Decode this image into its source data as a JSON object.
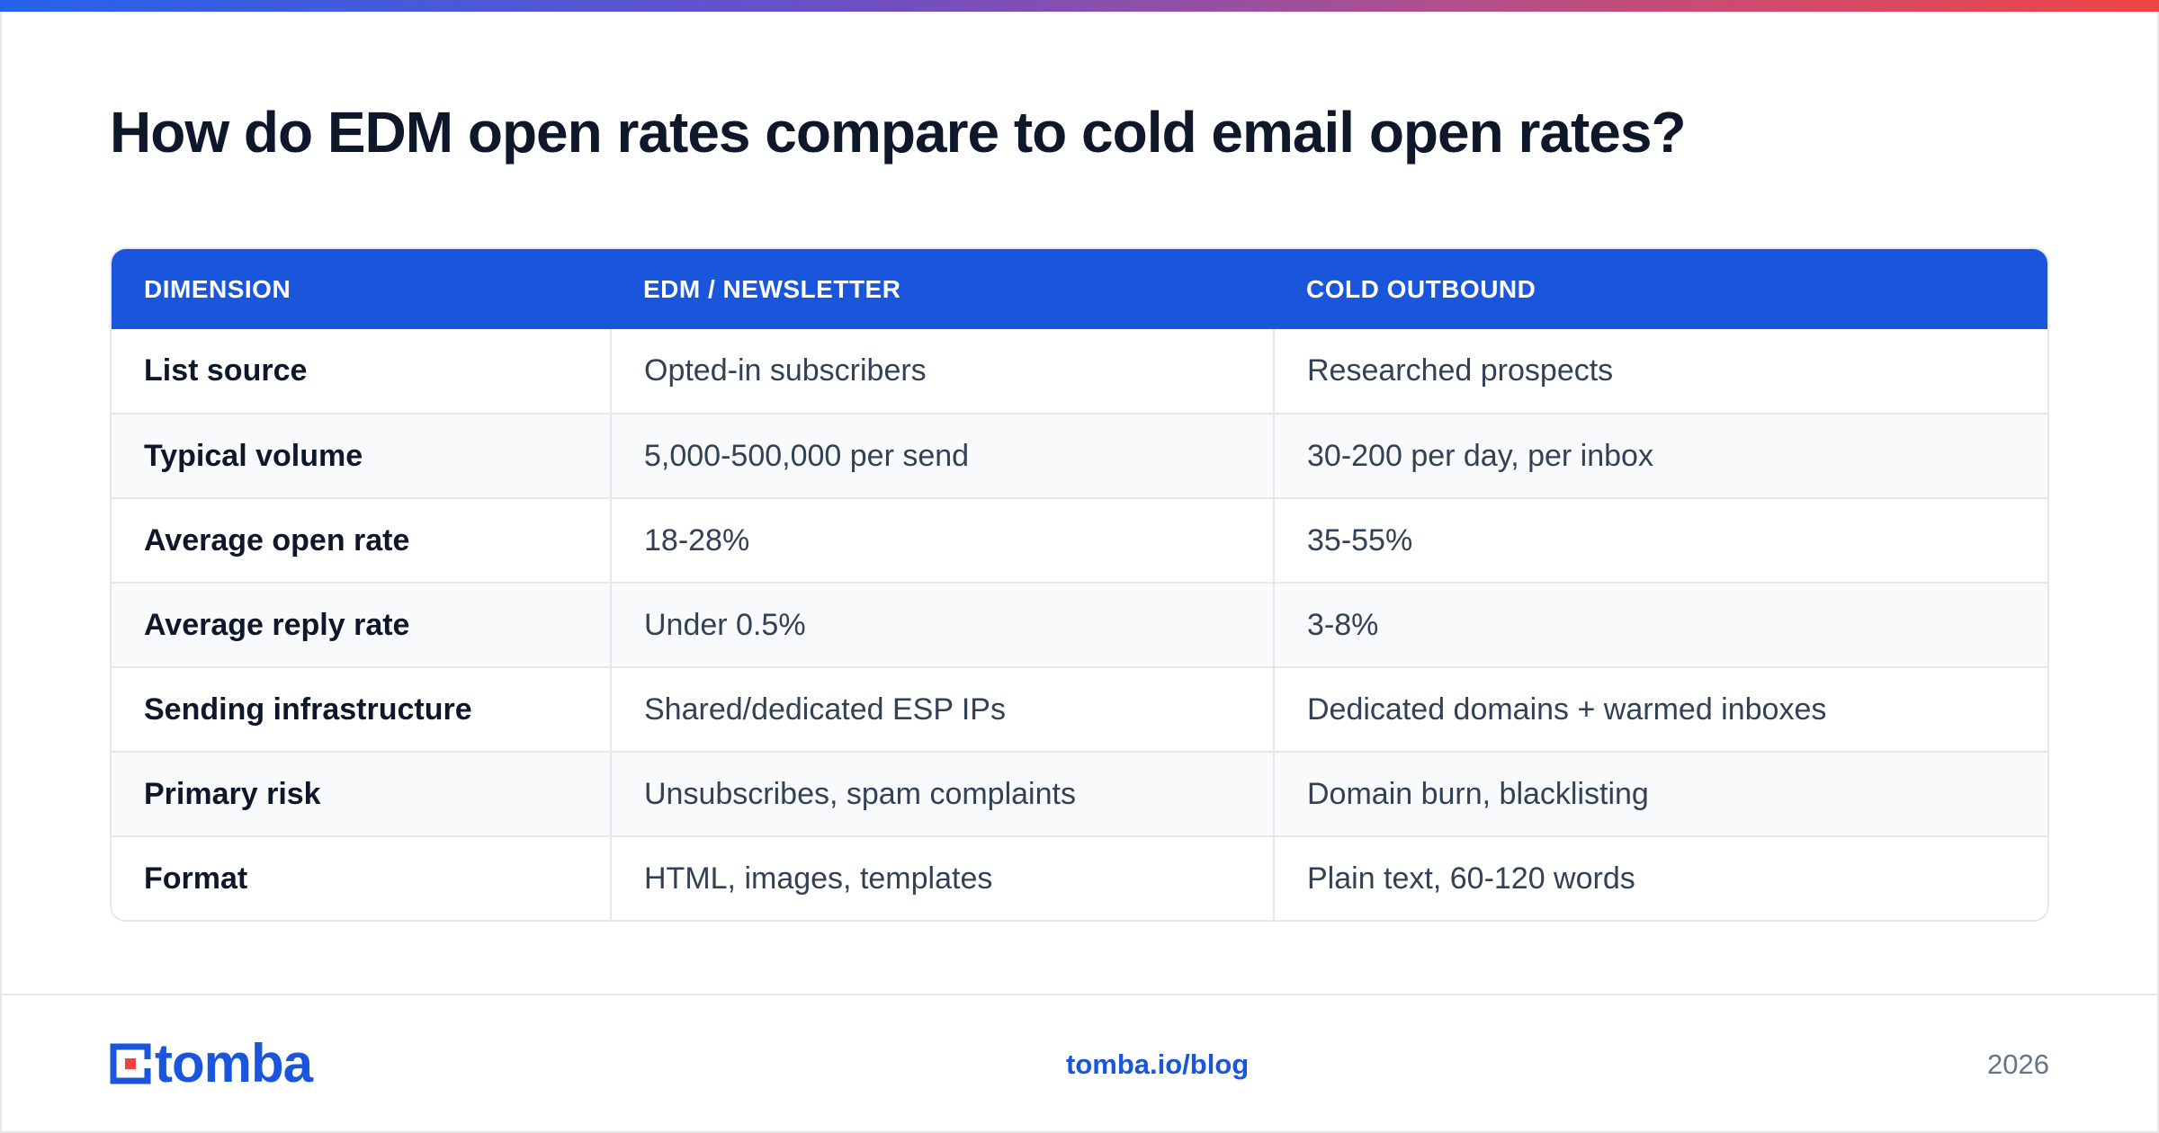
{
  "page": {
    "title": "How do EDM open rates compare to cold email open rates?"
  },
  "table": {
    "headers": [
      "DIMENSION",
      "EDM / NEWSLETTER",
      "COLD OUTBOUND"
    ],
    "rows": [
      [
        "List source",
        "Opted-in subscribers",
        "Researched prospects"
      ],
      [
        "Typical volume",
        "5,000-500,000 per send",
        "30-200 per day, per inbox"
      ],
      [
        "Average open rate",
        "18-28%",
        "35-55%"
      ],
      [
        "Average reply rate",
        "Under 0.5%",
        "3-8%"
      ],
      [
        "Sending infrastructure",
        "Shared/dedicated ESP IPs",
        "Dedicated domains + warmed inboxes"
      ],
      [
        "Primary risk",
        "Unsubscribes, spam complaints",
        "Domain burn, blacklisting"
      ],
      [
        "Format",
        "HTML, images, templates",
        "Plain text, 60-120 words"
      ]
    ]
  },
  "footer": {
    "logo_text": "tomba",
    "logo_icon": "tomba-logo-icon",
    "link": "tomba.io/blog",
    "year": "2026"
  },
  "colors": {
    "accent": "#1a56db",
    "header_bg": "#1a56db",
    "zebra": "#f8fafc",
    "border": "#e5e7eb",
    "logo_red": "#ef4444"
  }
}
